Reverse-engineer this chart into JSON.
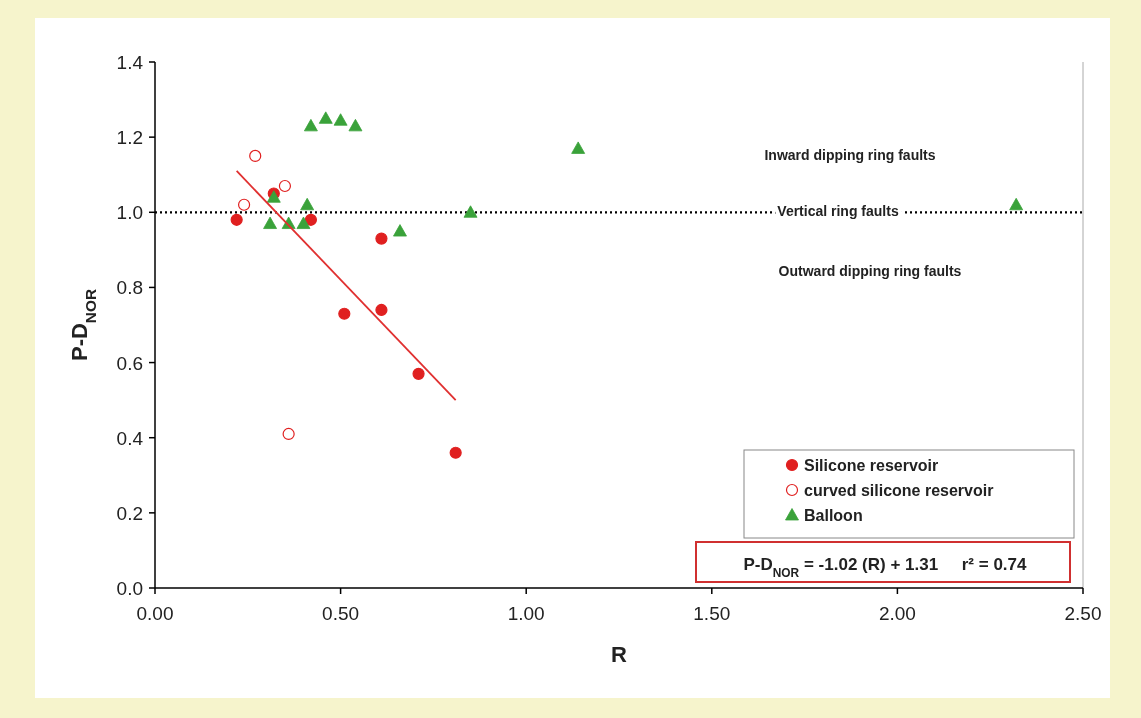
{
  "chart_data": {
    "type": "scatter",
    "xlabel": "R",
    "ylabel": "P-D$_{NOR}$",
    "xlim": [
      0,
      2.5
    ],
    "ylim": [
      0,
      1.4
    ],
    "xticks": [
      {
        "value": 0,
        "label": "0.00"
      },
      {
        "value": 0.5,
        "label": "0.50"
      },
      {
        "value": 1,
        "label": "1.00"
      },
      {
        "value": 1.5,
        "label": "1.50"
      },
      {
        "value": 2,
        "label": "2.00"
      },
      {
        "value": 2.5,
        "label": "2.50"
      }
    ],
    "yticks": [
      {
        "value": 0,
        "label": "0.0"
      },
      {
        "value": 0.2,
        "label": "0.2"
      },
      {
        "value": 0.4,
        "label": "0.4"
      },
      {
        "value": 0.6,
        "label": "0.6"
      },
      {
        "value": 0.8,
        "label": "0.8"
      },
      {
        "value": 1,
        "label": "1.0"
      },
      {
        "value": 1.2,
        "label": "1.2"
      },
      {
        "value": 1.4,
        "label": "1.4"
      }
    ],
    "legend": "bottom right",
    "series": [
      {
        "name": "Silicone reservoir",
        "color": "#e02020",
        "marker": "circle",
        "x": [
          0.22,
          0.32,
          0.42,
          0.61,
          0.51,
          0.61,
          0.71,
          0.81
        ],
        "values": [
          0.98,
          1.05,
          0.98,
          0.93,
          0.73,
          0.74,
          0.57,
          0.36
        ]
      },
      {
        "name": "curved silicone reservoir",
        "color": "#e02020",
        "marker": "circle",
        "x": [
          0.24,
          0.27,
          0.35,
          0.36
        ],
        "values": [
          1.02,
          1.15,
          1.07,
          0.41
        ]
      },
      {
        "name": "Balloon",
        "color": "#3aa23a",
        "marker": "triangle",
        "x": [
          0.31,
          0.32,
          0.36,
          0.4,
          0.41,
          0.42,
          0.46,
          0.5,
          0.54,
          0.66,
          0.85,
          1.14,
          2.32
        ],
        "values": [
          0.97,
          1.04,
          0.97,
          0.97,
          1.02,
          1.23,
          1.25,
          1.245,
          1.23,
          0.95,
          1.0,
          1.17,
          1.02
        ]
      },
      {
        "type": "line",
        "color": "#e03030",
        "x": [
          0.22,
          0.81
        ],
        "values": [
          1.11,
          0.5
        ]
      }
    ],
    "ref_lines": [
      {
        "axis": "y",
        "value": 1,
        "label": "Vertical ring faults",
        "color": "#000000",
        "line_style": "dotted"
      }
    ],
    "annotations": [
      "Inward dipping ring faults",
      "Outward dipping ring faults",
      "P-D$_{NOR}$ = -1.02 (R) + 1.31     r² = 0.74"
    ]
  }
}
